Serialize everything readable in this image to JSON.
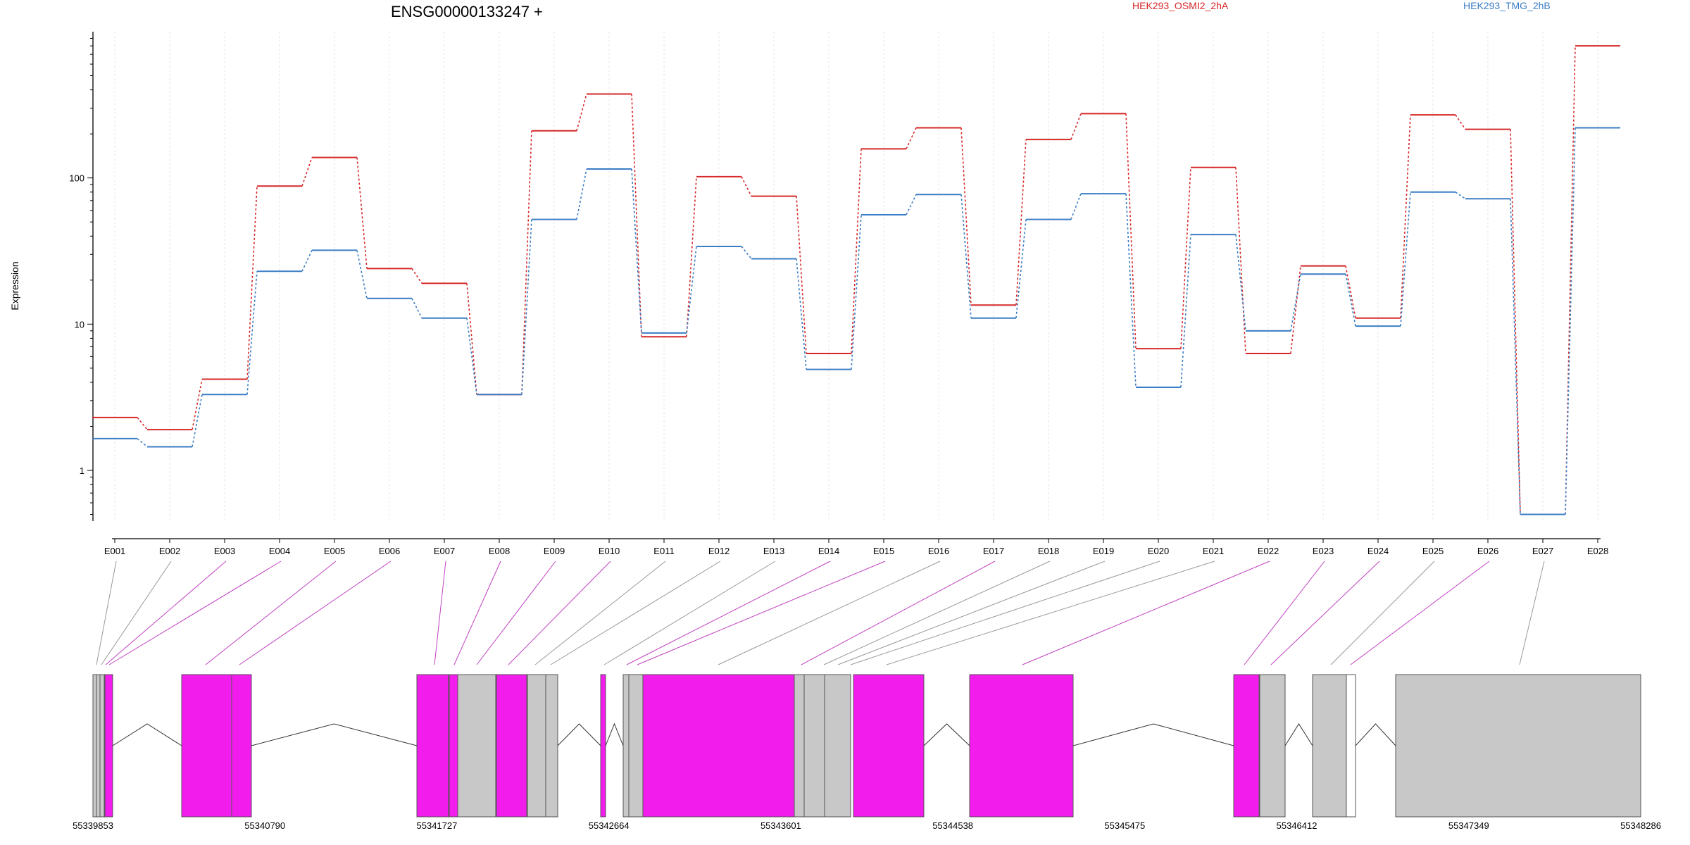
{
  "chart_data": {
    "type": "line",
    "title": "ENSG00000133247 +",
    "ylabel": "Expression",
    "yscale": "log",
    "ylim": [
      0.45,
      1000
    ],
    "yticks": [
      1,
      10,
      100
    ],
    "ytick_labels": [
      "1",
      "10",
      "100"
    ],
    "categories": [
      "E001",
      "E002",
      "E003",
      "E004",
      "E005",
      "E006",
      "E007",
      "E008",
      "E009",
      "E010",
      "E011",
      "E012",
      "E013",
      "E014",
      "E015",
      "E016",
      "E017",
      "E018",
      "E019",
      "E020",
      "E021",
      "E022",
      "E023",
      "E024",
      "E025",
      "E026",
      "E027",
      "E028"
    ],
    "series": [
      {
        "name": "HEK293_OSMI2_2hA",
        "color": "#d62728",
        "values": [
          2.3,
          1.9,
          4.2,
          88,
          138,
          24,
          19,
          3.3,
          210,
          375,
          8.2,
          102,
          75,
          6.3,
          158,
          220,
          13.5,
          183,
          275,
          6.8,
          118,
          6.3,
          25,
          11,
          270,
          215,
          0.5,
          800
        ]
      },
      {
        "name": "HEK293_TMG_2hB",
        "color": "#3b7dc4",
        "values": [
          1.65,
          1.45,
          3.3,
          23,
          32,
          15,
          11,
          3.3,
          52,
          115,
          8.7,
          34,
          28,
          4.9,
          56,
          77,
          11,
          52,
          78,
          3.7,
          41,
          9,
          22,
          9.7,
          80,
          72,
          0.5,
          220
        ]
      }
    ],
    "gene_model": {
      "coordinate_labels": [
        "55339853",
        "55340790",
        "55341727",
        "55342664",
        "55343601",
        "55344538",
        "55345475",
        "55346412",
        "55347349",
        "55348286"
      ],
      "colors": {
        "highlight": "#f21ced",
        "normal": "#c8c8c8",
        "connector_highlight": "#c040c0",
        "connector_normal": "#999999"
      }
    }
  }
}
